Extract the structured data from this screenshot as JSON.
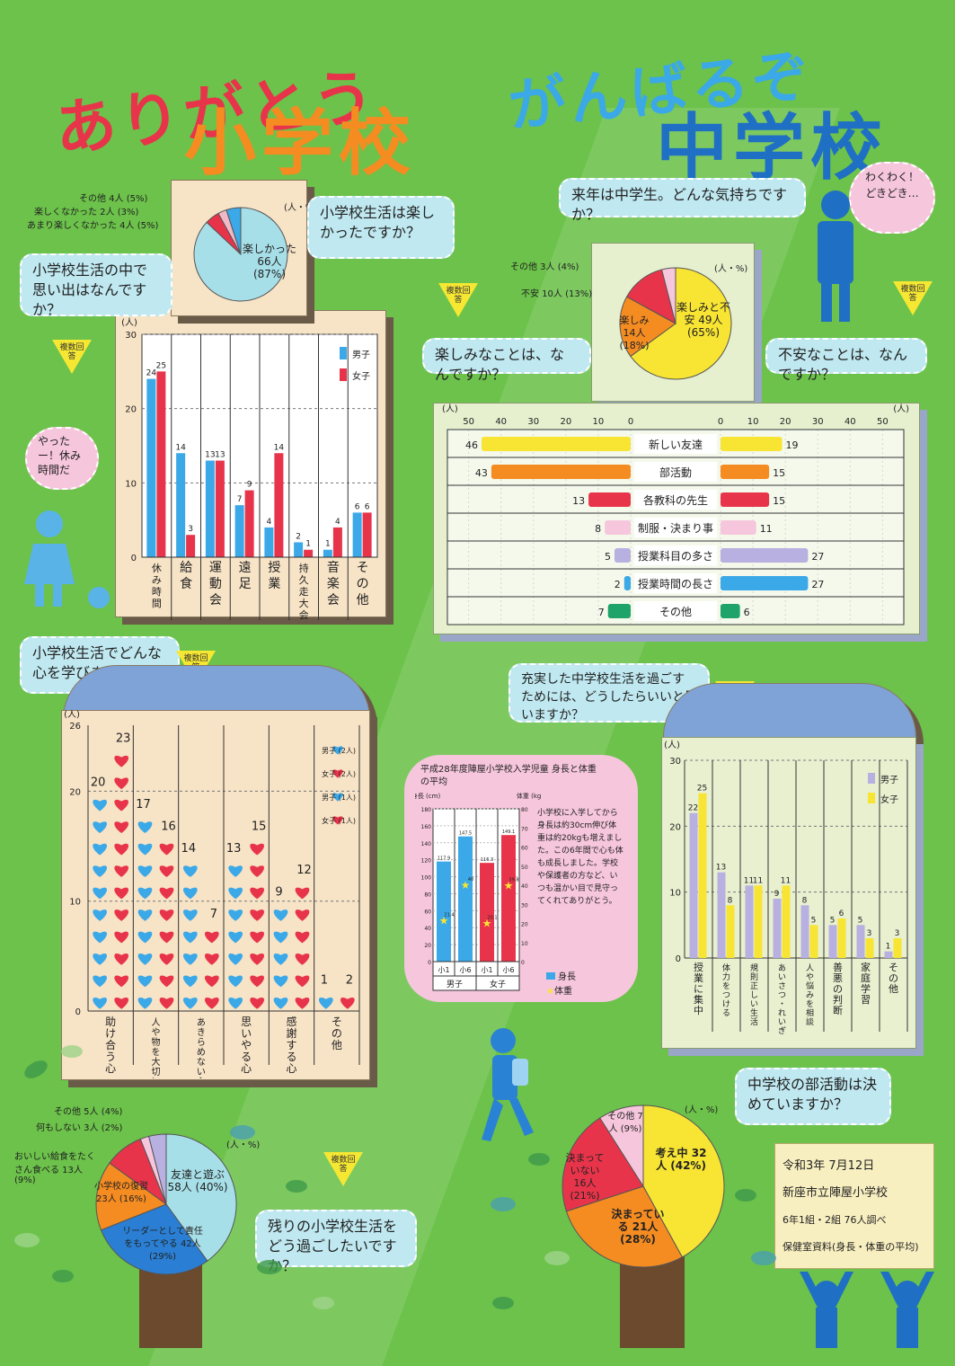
{
  "title": {
    "left_line1": "ありがとう",
    "left_line2": "小学校",
    "right_line1": "がんばるぞ",
    "right_line2": "中学校"
  },
  "multi_answer": "複数回答",
  "unit_person_pct": "(人・%)",
  "unit_person": "(人)",
  "q1": {
    "question": "小学校生活は楽しかったですか？",
    "labels": [
      "その他 4人 (5%)",
      "楽しくなかった 2人 (3%)",
      "あまり楽しくなかった 4人 (5%)"
    ],
    "main_label": "楽しかった 66人 (87%)"
  },
  "q2": {
    "question": "小学校生活の中で思い出はなんですか？",
    "legend_male": "男子",
    "legend_female": "女子",
    "bubble": "やったー！休み時間だ"
  },
  "q3": {
    "question": "来年は中学生。どんな気持ちですか？",
    "bubble": "わくわく！どきどき…",
    "labels": [
      "その他 3人 (4%)",
      "不安 10人 (13%)"
    ],
    "label_tanoshimi": "楽しみ 14人 (18%)",
    "label_main": "楽しみと不安 49人 (65%)"
  },
  "q4": {
    "question_left": "楽しみなことは、なんですか？",
    "question_right": "不安なことは、なんですか？"
  },
  "q5": {
    "question": "小学校生活でどんな心を学びましたか？",
    "legend": [
      "男子 (2人)",
      "女子 (2人)",
      "男子 (1人)",
      "女子 (1人)"
    ]
  },
  "q6": {
    "question": "充実した中学校生活を過ごすためには、どうしたらいいと思いますか？",
    "legend_male": "男子",
    "legend_female": "女子"
  },
  "q7": {
    "title": "平成28年度陣屋小学校入学児童 身長と体重の平均",
    "ylabel_left": "身長 (cm)",
    "ylabel_right": "体重 (kg)",
    "note": "小学校に入学してから身長は約30cm伸び体重は約20kgも増えました。この6年間で心も体も成長しました。学校や保護者の方など、いつも温かい目で見守ってくれてありがとう。",
    "groups": [
      "男子",
      "女子"
    ],
    "cats": [
      "小1",
      "小6",
      "小1",
      "小6"
    ],
    "legend_height": "身長",
    "legend_weight": "体重"
  },
  "q8": {
    "question": "残りの小学校生活をどう過ごしたいですか？",
    "labels": [
      "その他 5人 (4%)",
      "何もしない 3人 (2%)",
      "おいしい給食をたくさん食べる 13人 (9%)"
    ],
    "label_fukushu": "小学校の復習 23人 (16%)",
    "label_leader": "リーダーとして責任をもってやる 42人 (29%)",
    "label_main": "友達と遊ぶ 58人 (40%)"
  },
  "q9": {
    "question": "中学校の部活動は決めていますか？",
    "label_other": "その他 7人 (9%)",
    "label_undecided": "決まっていない 16人 (21%)",
    "label_decided": "決まっている 21人 (28%)",
    "label_main": "考え中 32人 (42%)"
  },
  "footer": {
    "date": "令和3年 7月12日",
    "school": "新座市立陣屋小学校",
    "survey": "6年1組・2組 76人調べ",
    "source": "保健室資料(身長・体重の平均)"
  },
  "colors": {
    "background": "#6cc24a",
    "male": "#3ba8e8",
    "female": "#e8344a",
    "purple": "#b7b0e0",
    "yellow": "#f7e433",
    "orange": "#f58c22"
  },
  "chart_data": [
    {
      "type": "pie",
      "labels": [
        "楽しかった",
        "その他",
        "楽しくなかった",
        "あまり楽しくなかった"
      ],
      "values": [
        87,
        5,
        3,
        5
      ]
    },
    {
      "type": "bar",
      "categories": [
        "休み時間",
        "給食",
        "運動会",
        "遠足",
        "授業",
        "持久走大会",
        "音楽会",
        "その他"
      ],
      "series": [
        {
          "name": "男子",
          "values": [
            24,
            14,
            13,
            7,
            4,
            2,
            1,
            6
          ]
        },
        {
          "name": "女子",
          "values": [
            25,
            3,
            13,
            9,
            14,
            1,
            4,
            6
          ]
        }
      ],
      "ylim": [
        0,
        30
      ],
      "yticks": [
        0,
        10,
        20,
        30
      ]
    },
    {
      "type": "pie",
      "labels": [
        "楽しみと不安",
        "楽しみ",
        "不安",
        "その他"
      ],
      "values": [
        65,
        18,
        13,
        4
      ]
    },
    {
      "type": "bar",
      "categories": [
        "新しい友達",
        "部活動",
        "各教科の先生",
        "制服・決まり事",
        "授業科目の多さ",
        "授業時間の長さ",
        "その他"
      ],
      "series": [
        {
          "name": "楽しみなこと",
          "values": [
            46,
            43,
            13,
            8,
            5,
            2,
            7
          ]
        },
        {
          "name": "不安なこと",
          "values": [
            19,
            15,
            15,
            11,
            27,
            27,
            6
          ]
        }
      ],
      "xlim": [
        0,
        50
      ],
      "xticks": [
        0,
        10,
        20,
        30,
        40,
        50
      ]
    },
    {
      "type": "bar",
      "categories": [
        "助け合う心",
        "人や物を大切にする心",
        "あきらめない心",
        "思いやる心",
        "感謝する心",
        "その他"
      ],
      "series": [
        {
          "name": "男子",
          "values": [
            20,
            17,
            14,
            13,
            9,
            1
          ]
        },
        {
          "name": "女子",
          "values": [
            23,
            16,
            7,
            15,
            12,
            2
          ]
        }
      ],
      "ylim": [
        0,
        26
      ],
      "yticks": [
        0,
        10,
        20,
        26
      ]
    },
    {
      "type": "bar",
      "categories": [
        "授業に集中",
        "体力をつける",
        "規則正しい生活",
        "あいさつ・れいぎ",
        "人や悩みを相談",
        "善悪の判断",
        "家庭学習",
        "その他"
      ],
      "series": [
        {
          "name": "男子",
          "values": [
            22,
            13,
            11,
            9,
            8,
            5,
            5,
            1
          ]
        },
        {
          "name": "女子",
          "values": [
            25,
            8,
            11,
            11,
            5,
            6,
            3,
            3
          ]
        }
      ],
      "ylim": [
        0,
        30
      ],
      "yticks": [
        0,
        10,
        20,
        30
      ]
    },
    {
      "type": "bar",
      "categories": [
        "男子 小1",
        "男子 小6",
        "女子 小1",
        "女子 小6"
      ],
      "series": [
        {
          "name": "身長",
          "values": [
            117.9,
            147.5,
            116.3,
            149.1
          ]
        },
        {
          "name": "体重",
          "values": [
            21.4,
            40,
            20.1,
            39.8
          ]
        }
      ],
      "ylim": [
        0,
        180
      ],
      "yticks": [
        0,
        20,
        40,
        60,
        80,
        100,
        120,
        140,
        160,
        180
      ],
      "y2lim": [
        0,
        80
      ],
      "y2ticks": [
        0,
        10,
        20,
        30,
        40,
        50,
        60,
        70,
        80
      ]
    },
    {
      "type": "pie",
      "labels": [
        "友達と遊ぶ",
        "リーダーとして責任をもってやる",
        "小学校の復習",
        "おいしい給食をたくさん食べる",
        "何もしない",
        "その他"
      ],
      "values": [
        40,
        29,
        16,
        9,
        2,
        4
      ]
    },
    {
      "type": "pie",
      "labels": [
        "考え中",
        "決まっている",
        "決まっていない",
        "その他"
      ],
      "values": [
        42,
        28,
        21,
        9
      ]
    }
  ]
}
